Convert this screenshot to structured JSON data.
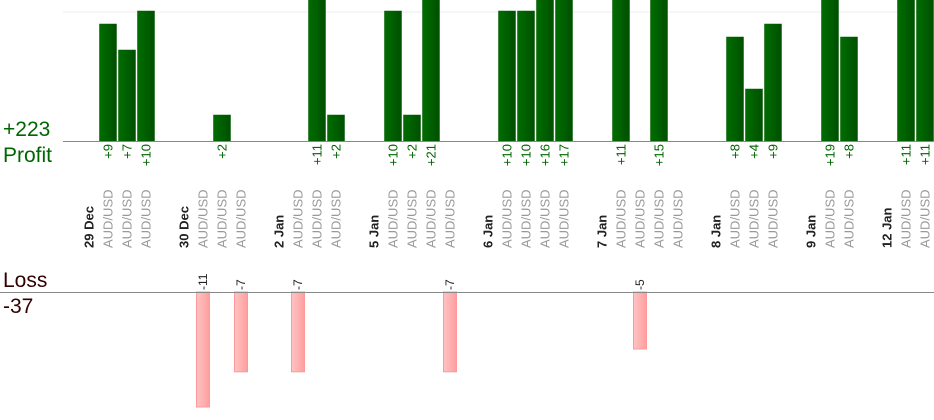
{
  "summary": {
    "profit_total": "+223",
    "profit_label": "Profit",
    "loss_label": "Loss",
    "loss_total": "-37"
  },
  "colors": {
    "profit_bar": "#006600",
    "loss_bar": "#ffb3b3",
    "profit_text": "#006600",
    "loss_text": "#330000",
    "symbol_text": "#999999"
  },
  "chart_data": {
    "type": "bar",
    "grid": true,
    "groups": [
      {
        "date": "29 Dec",
        "trades": [
          {
            "symbol": "AUD/USD",
            "value": 9
          },
          {
            "symbol": "AUD/USD",
            "value": 7
          },
          {
            "symbol": "AUD/USD",
            "value": 10
          }
        ]
      },
      {
        "date": "30 Dec",
        "trades": [
          {
            "symbol": "AUD/USD",
            "value": -11
          },
          {
            "symbol": "AUD/USD",
            "value": 2
          },
          {
            "symbol": "AUD/USD",
            "value": -7
          }
        ]
      },
      {
        "date": "2 Jan",
        "trades": [
          {
            "symbol": "AUD/USD",
            "value": -7
          },
          {
            "symbol": "AUD/USD",
            "value": 11
          },
          {
            "symbol": "AUD/USD",
            "value": 2
          }
        ]
      },
      {
        "date": "5 Jan",
        "trades": [
          {
            "symbol": "AUD/USD",
            "value": 10
          },
          {
            "symbol": "AUD/USD",
            "value": 2
          },
          {
            "symbol": "AUD/USD",
            "value": 21
          },
          {
            "symbol": "AUD/USD",
            "value": -7
          }
        ]
      },
      {
        "date": "6 Jan",
        "trades": [
          {
            "symbol": "AUD/USD",
            "value": 10
          },
          {
            "symbol": "AUD/USD",
            "value": 10
          },
          {
            "symbol": "AUD/USD",
            "value": 16
          },
          {
            "symbol": "AUD/USD",
            "value": 17
          }
        ]
      },
      {
        "date": "7 Jan",
        "trades": [
          {
            "symbol": "AUD/USD",
            "value": 11
          },
          {
            "symbol": "AUD/USD",
            "value": -5
          },
          {
            "symbol": "AUD/USD",
            "value": 15
          },
          {
            "symbol": "AUD/USD",
            "value": null
          }
        ]
      },
      {
        "date": "8 Jan",
        "trades": [
          {
            "symbol": "AUD/USD",
            "value": 8
          },
          {
            "symbol": "AUD/USD",
            "value": 4
          },
          {
            "symbol": "AUD/USD",
            "value": 9
          }
        ]
      },
      {
        "date": "9 Jan",
        "trades": [
          {
            "symbol": "AUD/USD",
            "value": 19
          },
          {
            "symbol": "AUD/USD",
            "value": 8
          }
        ]
      },
      {
        "date": "12 Jan",
        "trades": [
          {
            "symbol": "AUD/USD",
            "value": 11
          },
          {
            "symbol": "AUD/USD",
            "value": 11
          }
        ]
      }
    ]
  }
}
